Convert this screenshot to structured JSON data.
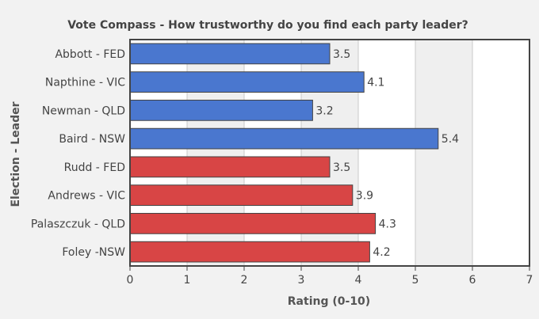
{
  "chart_data": {
    "type": "bar",
    "orientation": "horizontal",
    "title": "Vote Compass - How trustworthy do you find each party leader?",
    "xlabel": "Rating (0-10)",
    "ylabel": "Election - Leader",
    "categories": [
      "Abbott - FED",
      "Napthine - VIC",
      "Newman - QLD",
      "Baird - NSW",
      "Rudd - FED",
      "Andrews - VIC",
      "Palaszczuk - QLD",
      "Foley -NSW"
    ],
    "values": [
      3.5,
      4.1,
      3.2,
      5.4,
      3.5,
      3.9,
      4.3,
      4.2
    ],
    "labels": [
      "3.5",
      "4.1",
      "3.2",
      "5.4",
      "3.5",
      "3.9",
      "4.3",
      "4.2"
    ],
    "bar_colors": [
      "#4a77cf",
      "#4a77cf",
      "#4a77cf",
      "#4a77cf",
      "#d84545",
      "#d84545",
      "#d84545",
      "#d84545"
    ],
    "xlim": [
      0,
      7
    ],
    "xticks": [
      "0",
      "1",
      "2",
      "3",
      "4",
      "5",
      "6",
      "7"
    ],
    "grid": true,
    "legend": "none"
  }
}
